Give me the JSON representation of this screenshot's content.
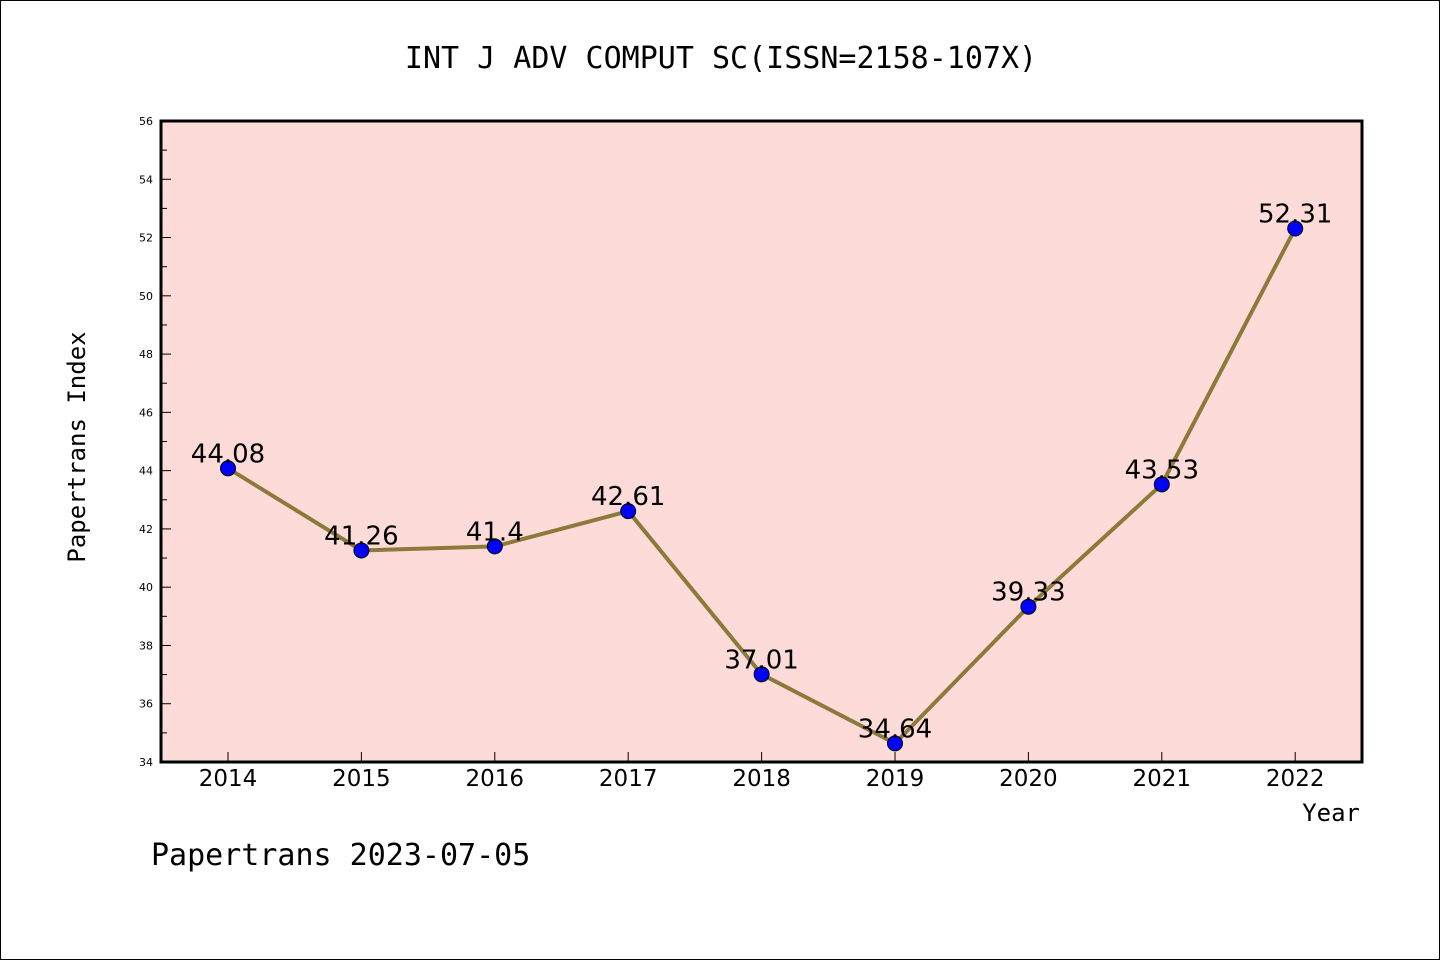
{
  "chart_data": {
    "type": "line",
    "title": "INT J ADV COMPUT SC(ISSN=2158-107X)",
    "xlabel": "Year",
    "ylabel": "Papertrans Index",
    "categories": [
      "2014",
      "2015",
      "2016",
      "2017",
      "2018",
      "2019",
      "2020",
      "2021",
      "2022"
    ],
    "values": [
      44.08,
      41.26,
      41.4,
      42.61,
      37.01,
      34.64,
      39.33,
      43.53,
      52.31
    ],
    "data_labels": [
      "44.08",
      "41.26",
      "41.4",
      "42.61",
      "37.01",
      "34.64",
      "39.33",
      "43.53",
      "52.31"
    ],
    "ylim": [
      34,
      56
    ],
    "yticks": [
      "34",
      "36",
      "38",
      "40",
      "42",
      "44",
      "46",
      "48",
      "50",
      "52",
      "54",
      "56"
    ],
    "grid": false,
    "legend": "none",
    "colors": {
      "plot_background": "#fddbd8",
      "line": "#8b7a3a",
      "marker": "#0000ff"
    }
  },
  "footer": {
    "text": "Papertrans 2023-07-05"
  }
}
